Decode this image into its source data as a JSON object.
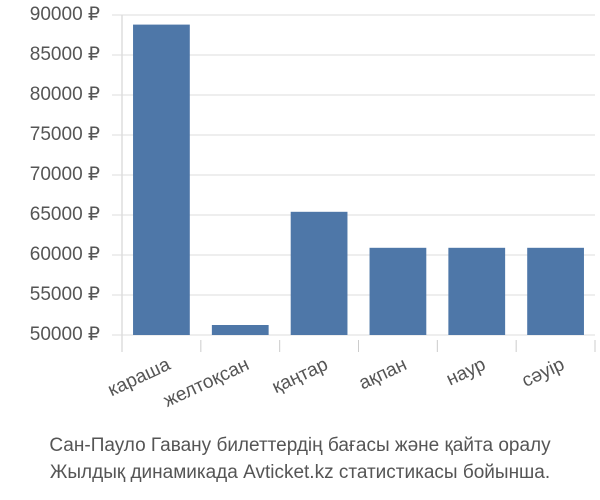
{
  "chart_data": {
    "type": "bar",
    "title": "Сан-Пауло Гавану билеттердің бағасы және қайта оралу",
    "subtitle": "Жылдық динамикада Avticket.kz статистикасы бойынша.",
    "categories": [
      "караша",
      "желтоқсан",
      "қаңтар",
      "ақпан",
      "наур",
      "сәуір"
    ],
    "values": [
      88800,
      51250,
      65400,
      60900,
      60900,
      60900
    ],
    "color": "#4e77a8",
    "ylim": [
      50000,
      90000
    ],
    "yticks": [
      {
        "value": 50000,
        "label": "50000 ₽"
      },
      {
        "value": 55000,
        "label": "55000 ₽"
      },
      {
        "value": 60000,
        "label": "60000 ₽"
      },
      {
        "value": 65000,
        "label": "65000 ₽"
      },
      {
        "value": 70000,
        "label": "70000 ₽"
      },
      {
        "value": 75000,
        "label": "75000 ₽"
      },
      {
        "value": 80000,
        "label": "80000 ₽"
      },
      {
        "value": 85000,
        "label": "85000 ₽"
      },
      {
        "value": 90000,
        "label": "90000 ₽"
      }
    ],
    "grid": true
  }
}
